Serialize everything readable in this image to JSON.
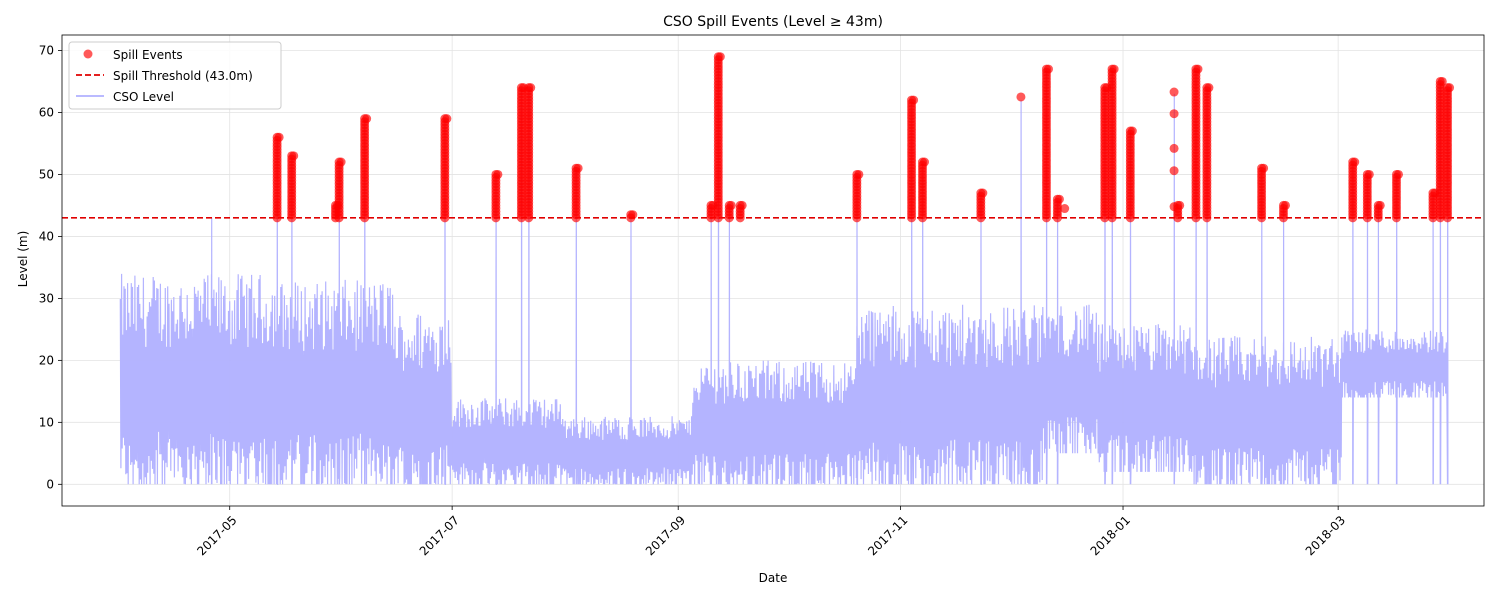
{
  "chart_data": {
    "type": "scatter",
    "title": "CSO Spill Events (Level ≥ 43m)",
    "xlabel": "Date",
    "ylabel": "Level (m)",
    "xlim": [
      "2017-03-16",
      "2018-04-10"
    ],
    "ylim": [
      -3.5,
      72.5
    ],
    "x_ticks": [
      {
        "date": "2017-05-01",
        "label": "2017-05"
      },
      {
        "date": "2017-07-01",
        "label": "2017-07"
      },
      {
        "date": "2017-09-01",
        "label": "2017-09"
      },
      {
        "date": "2017-11-01",
        "label": "2017-11"
      },
      {
        "date": "2018-01-01",
        "label": "2018-01"
      },
      {
        "date": "2018-03-01",
        "label": "2018-03"
      }
    ],
    "y_ticks": [
      0,
      10,
      20,
      30,
      40,
      50,
      60,
      70
    ],
    "grid": true,
    "legend_position": "top-left",
    "threshold": {
      "name": "Spill Threshold (43.0m)",
      "value": 43.0,
      "color": "#e00000"
    },
    "series": [
      {
        "name": "CSO Level",
        "kind": "line",
        "color": "#b0b0ff",
        "segments": [
          {
            "start": "2017-04-01",
            "end": "2017-05-15",
            "low": 0,
            "high": 34
          },
          {
            "start": "2017-05-15",
            "end": "2017-06-15",
            "low": 0,
            "high": 33
          },
          {
            "start": "2017-06-15",
            "end": "2017-07-01",
            "low": 0,
            "high": 28
          },
          {
            "start": "2017-07-01",
            "end": "2017-08-01",
            "low": 0,
            "high": 14
          },
          {
            "start": "2017-08-01",
            "end": "2017-09-05",
            "low": 0,
            "high": 11
          },
          {
            "start": "2017-09-05",
            "end": "2017-10-20",
            "low": 0,
            "high": 20
          },
          {
            "start": "2017-10-20",
            "end": "2017-12-10",
            "low": 0,
            "high": 29
          },
          {
            "start": "2017-12-10",
            "end": "2017-12-25",
            "low": 5,
            "high": 29
          },
          {
            "start": "2017-12-25",
            "end": "2018-01-20",
            "low": 2,
            "high": 26
          },
          {
            "start": "2018-01-20",
            "end": "2018-03-02",
            "low": 0,
            "high": 24
          },
          {
            "start": "2018-03-02",
            "end": "2018-03-31",
            "low": 14,
            "high": 25
          }
        ],
        "spikes": [
          {
            "date": "2017-04-26",
            "value": 43
          },
          {
            "date": "2017-05-14",
            "value": 56
          },
          {
            "date": "2017-05-18",
            "value": 53
          },
          {
            "date": "2017-05-31",
            "value": 52
          },
          {
            "date": "2017-06-07",
            "value": 59
          },
          {
            "date": "2017-06-29",
            "value": 59
          },
          {
            "date": "2017-07-13",
            "value": 50
          },
          {
            "date": "2017-07-20",
            "value": 64
          },
          {
            "date": "2017-07-22",
            "value": 64
          },
          {
            "date": "2017-08-04",
            "value": 51
          },
          {
            "date": "2017-08-19",
            "value": 43
          },
          {
            "date": "2017-09-10",
            "value": 45
          },
          {
            "date": "2017-09-12",
            "value": 69
          },
          {
            "date": "2017-09-15",
            "value": 45
          },
          {
            "date": "2017-10-20",
            "value": 50
          },
          {
            "date": "2017-11-04",
            "value": 62
          },
          {
            "date": "2017-11-07",
            "value": 52
          },
          {
            "date": "2017-11-23",
            "value": 47
          },
          {
            "date": "2017-12-04",
            "value": 62
          },
          {
            "date": "2017-12-11",
            "value": 67
          },
          {
            "date": "2017-12-14",
            "value": 46
          },
          {
            "date": "2017-12-27",
            "value": 64
          },
          {
            "date": "2017-12-29",
            "value": 67
          },
          {
            "date": "2018-01-03",
            "value": 57
          },
          {
            "date": "2018-01-15",
            "value": 63
          },
          {
            "date": "2018-01-21",
            "value": 67
          },
          {
            "date": "2018-01-24",
            "value": 64
          },
          {
            "date": "2018-02-08",
            "value": 51
          },
          {
            "date": "2018-02-14",
            "value": 45
          },
          {
            "date": "2018-03-05",
            "value": 52
          },
          {
            "date": "2018-03-09",
            "value": 50
          },
          {
            "date": "2018-03-12",
            "value": 45
          },
          {
            "date": "2018-03-17",
            "value": 50
          },
          {
            "date": "2018-03-27",
            "value": 47
          },
          {
            "date": "2018-03-29",
            "value": 65
          },
          {
            "date": "2018-03-31",
            "value": 64
          }
        ]
      },
      {
        "name": "Spill Events",
        "kind": "scatter",
        "color": "#ff0000",
        "events": [
          {
            "date": "2017-05-14",
            "min": 43,
            "max": 56
          },
          {
            "date": "2017-05-18",
            "min": 43,
            "max": 53
          },
          {
            "date": "2017-05-30",
            "min": 43,
            "max": 45
          },
          {
            "date": "2017-05-31",
            "min": 43,
            "max": 52
          },
          {
            "date": "2017-06-07",
            "min": 43,
            "max": 59
          },
          {
            "date": "2017-06-29",
            "min": 43,
            "max": 59
          },
          {
            "date": "2017-07-13",
            "min": 43,
            "max": 50
          },
          {
            "date": "2017-07-20",
            "min": 43,
            "max": 64
          },
          {
            "date": "2017-07-22",
            "min": 43,
            "max": 64
          },
          {
            "date": "2017-08-04",
            "min": 43,
            "max": 51
          },
          {
            "date": "2017-08-19",
            "min": 43,
            "max": 43.5
          },
          {
            "date": "2017-09-10",
            "min": 43,
            "max": 45
          },
          {
            "date": "2017-09-12",
            "min": 43,
            "max": 69
          },
          {
            "date": "2017-09-15",
            "min": 43,
            "max": 45
          },
          {
            "date": "2017-09-18",
            "min": 43,
            "max": 45
          },
          {
            "date": "2017-10-20",
            "min": 43,
            "max": 50
          },
          {
            "date": "2017-11-04",
            "min": 43,
            "max": 62
          },
          {
            "date": "2017-11-07",
            "min": 43,
            "max": 52
          },
          {
            "date": "2017-11-23",
            "min": 43,
            "max": 47
          },
          {
            "date": "2017-12-11",
            "min": 43,
            "max": 67
          },
          {
            "date": "2017-12-14",
            "min": 43,
            "max": 46
          },
          {
            "date": "2017-12-27",
            "min": 43,
            "max": 64
          },
          {
            "date": "2017-12-29",
            "min": 43,
            "max": 67
          },
          {
            "date": "2018-01-03",
            "min": 43,
            "max": 57
          },
          {
            "date": "2018-01-16",
            "min": 43,
            "max": 45
          },
          {
            "date": "2018-01-21",
            "min": 43,
            "max": 67
          },
          {
            "date": "2018-01-24",
            "min": 43,
            "max": 64
          },
          {
            "date": "2018-02-08",
            "min": 43,
            "max": 51
          },
          {
            "date": "2018-02-14",
            "min": 43,
            "max": 45
          },
          {
            "date": "2018-03-05",
            "min": 43,
            "max": 52
          },
          {
            "date": "2018-03-09",
            "min": 43,
            "max": 50
          },
          {
            "date": "2018-03-12",
            "min": 43,
            "max": 45
          },
          {
            "date": "2018-03-17",
            "min": 43,
            "max": 50
          },
          {
            "date": "2018-03-27",
            "min": 43,
            "max": 47
          },
          {
            "date": "2018-03-29",
            "min": 43,
            "max": 65
          },
          {
            "date": "2018-03-31",
            "min": 43,
            "max": 64
          }
        ],
        "points": [
          {
            "date": "2017-12-04",
            "value": 62.5
          },
          {
            "date": "2017-12-16",
            "value": 44.5
          },
          {
            "date": "2018-01-15",
            "value": 63.3
          },
          {
            "date": "2018-01-15",
            "value": 59.8
          },
          {
            "date": "2018-01-15",
            "value": 54.2
          },
          {
            "date": "2018-01-15",
            "value": 50.6
          },
          {
            "date": "2018-01-15",
            "value": 44.8
          }
        ]
      }
    ]
  }
}
